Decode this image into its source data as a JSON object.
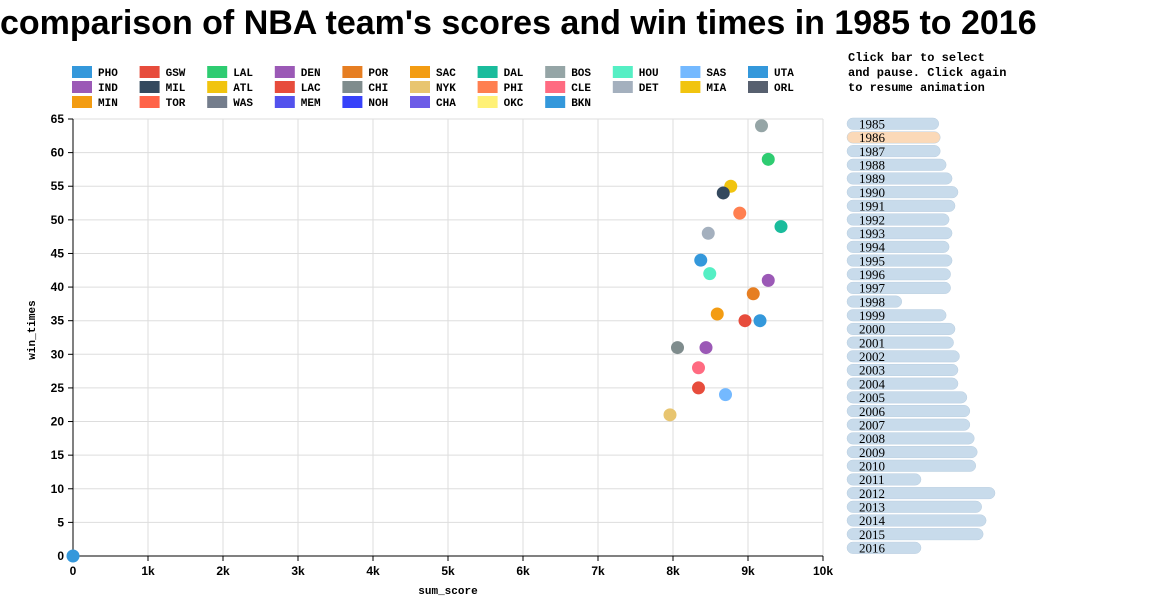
{
  "title": "comparison of NBA team's scores and win times in 1985 to 2016",
  "instructions": [
    "Click bar to select",
    "and pause. Click again",
    "to resume animation"
  ],
  "colors": {
    "grid": "#dddddd",
    "axis": "#000000",
    "year_bar": "#c8dbeb",
    "year_bar_selected": "#fbd9b8",
    "year_bar_stroke": "#b9cee0"
  },
  "legend": [
    {
      "team": "PHO",
      "color": "#3498db"
    },
    {
      "team": "GSW",
      "color": "#e74c3c"
    },
    {
      "team": "LAL",
      "color": "#2ecc71"
    },
    {
      "team": "DEN",
      "color": "#9b59b6"
    },
    {
      "team": "POR",
      "color": "#e67e22"
    },
    {
      "team": "SAC",
      "color": "#f39c12"
    },
    {
      "team": "DAL",
      "color": "#1abc9c"
    },
    {
      "team": "BOS",
      "color": "#95a5a6"
    },
    {
      "team": "HOU",
      "color": "#55efc4"
    },
    {
      "team": "SAS",
      "color": "#74b9ff"
    },
    {
      "team": "UTA",
      "color": "#3498db"
    },
    {
      "team": "IND",
      "color": "#9b59b6"
    },
    {
      "team": "MIL",
      "color": "#34495e"
    },
    {
      "team": "ATL",
      "color": "#f1c40f"
    },
    {
      "team": "LAC",
      "color": "#e74c3c"
    },
    {
      "team": "CHI",
      "color": "#7f8c8d"
    },
    {
      "team": "NYK",
      "color": "#e8c570"
    },
    {
      "team": "PHI",
      "color": "#ff7f50"
    },
    {
      "team": "CLE",
      "color": "#ff6b81"
    },
    {
      "team": "DET",
      "color": "#a4b0be"
    },
    {
      "team": "MIA",
      "color": "#f1c40f"
    },
    {
      "team": "ORL",
      "color": "#57606f"
    },
    {
      "team": "MIN",
      "color": "#f39c12"
    },
    {
      "team": "TOR",
      "color": "#ff6348"
    },
    {
      "team": "WAS",
      "color": "#747d8c"
    },
    {
      "team": "MEM",
      "color": "#5352ed"
    },
    {
      "team": "NOH",
      "color": "#3742fa"
    },
    {
      "team": "CHA",
      "color": "#6c5ce7"
    },
    {
      "team": "OKC",
      "color": "#fff176"
    },
    {
      "team": "BKN",
      "color": "#3498db"
    }
  ],
  "chart_data": {
    "type": "scatter",
    "title": "comparison of NBA team's scores and win times in 1985 to 2016",
    "xlabel": "sum_score",
    "ylabel": "win_times",
    "xlim": [
      0,
      10000
    ],
    "ylim": [
      0,
      65
    ],
    "x_ticks": [
      0,
      1000,
      2000,
      3000,
      4000,
      5000,
      6000,
      7000,
      8000,
      9000,
      10000
    ],
    "x_tick_labels": [
      "0",
      "1k",
      "2k",
      "3k",
      "4k",
      "5k",
      "6k",
      "7k",
      "8k",
      "9k",
      "10k"
    ],
    "y_ticks": [
      0,
      5,
      10,
      15,
      20,
      25,
      30,
      35,
      40,
      45,
      50,
      55,
      60,
      65
    ],
    "grid": true,
    "selected_year": "1986",
    "points": [
      {
        "x": 9180,
        "y": 64,
        "color": "#95a5a6"
      },
      {
        "x": 9270,
        "y": 59,
        "color": "#2ecc71"
      },
      {
        "x": 8770,
        "y": 55,
        "color": "#f1c40f"
      },
      {
        "x": 8670,
        "y": 54,
        "color": "#34495e"
      },
      {
        "x": 8890,
        "y": 51,
        "color": "#ff7f50"
      },
      {
        "x": 9440,
        "y": 49,
        "color": "#1abc9c"
      },
      {
        "x": 8470,
        "y": 48,
        "color": "#a4b0be"
      },
      {
        "x": 8370,
        "y": 44,
        "color": "#3498db"
      },
      {
        "x": 8490,
        "y": 42,
        "color": "#55efc4"
      },
      {
        "x": 9270,
        "y": 41,
        "color": "#9b59b6"
      },
      {
        "x": 9070,
        "y": 39,
        "color": "#e67e22"
      },
      {
        "x": 8590,
        "y": 36,
        "color": "#f39c12"
      },
      {
        "x": 8960,
        "y": 35,
        "color": "#e74c3c"
      },
      {
        "x": 9160,
        "y": 35,
        "color": "#3498db"
      },
      {
        "x": 8060,
        "y": 31,
        "color": "#7f8c8d"
      },
      {
        "x": 8440,
        "y": 31,
        "color": "#9b59b6"
      },
      {
        "x": 8340,
        "y": 28,
        "color": "#ff6b81"
      },
      {
        "x": 8340,
        "y": 25,
        "color": "#e74c3c"
      },
      {
        "x": 8700,
        "y": 24,
        "color": "#74b9ff"
      },
      {
        "x": 7960,
        "y": 21,
        "color": "#e8c570"
      },
      {
        "x": 0,
        "y": 0,
        "color": "#3498db"
      }
    ],
    "years": [
      {
        "label": "1985",
        "value": 0.62
      },
      {
        "label": "1986",
        "value": 0.63
      },
      {
        "label": "1987",
        "value": 0.63
      },
      {
        "label": "1988",
        "value": 0.67
      },
      {
        "label": "1989",
        "value": 0.71
      },
      {
        "label": "1990",
        "value": 0.75
      },
      {
        "label": "1991",
        "value": 0.73
      },
      {
        "label": "1992",
        "value": 0.69
      },
      {
        "label": "1993",
        "value": 0.71
      },
      {
        "label": "1994",
        "value": 0.69
      },
      {
        "label": "1995",
        "value": 0.71
      },
      {
        "label": "1996",
        "value": 0.7
      },
      {
        "label": "1997",
        "value": 0.7
      },
      {
        "label": "1998",
        "value": 0.37
      },
      {
        "label": "1999",
        "value": 0.67
      },
      {
        "label": "2000",
        "value": 0.73
      },
      {
        "label": "2001",
        "value": 0.72
      },
      {
        "label": "2002",
        "value": 0.76
      },
      {
        "label": "2003",
        "value": 0.75
      },
      {
        "label": "2004",
        "value": 0.75
      },
      {
        "label": "2005",
        "value": 0.81
      },
      {
        "label": "2006",
        "value": 0.83
      },
      {
        "label": "2007",
        "value": 0.83
      },
      {
        "label": "2008",
        "value": 0.86
      },
      {
        "label": "2009",
        "value": 0.88
      },
      {
        "label": "2010",
        "value": 0.87
      },
      {
        "label": "2011",
        "value": 0.5
      },
      {
        "label": "2012",
        "value": 1.0
      },
      {
        "label": "2013",
        "value": 0.91
      },
      {
        "label": "2014",
        "value": 0.94
      },
      {
        "label": "2015",
        "value": 0.92
      },
      {
        "label": "2016",
        "value": 0.5
      }
    ]
  }
}
